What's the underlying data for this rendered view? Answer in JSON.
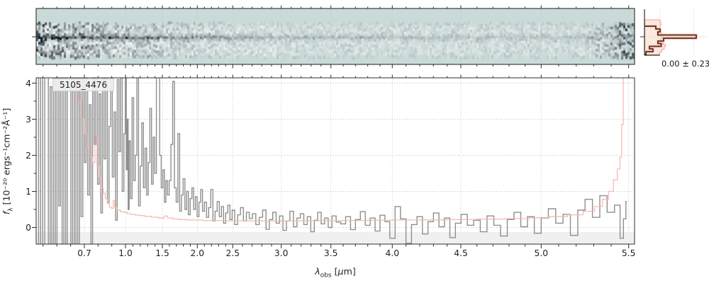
{
  "figure": {
    "source_id": "5105_4476",
    "background": "#ffffff"
  },
  "chart_data": {
    "type": "line",
    "title": "5105_4476",
    "xlabel": "λ_obs [μm]",
    "ylabel": "f_λ [10⁻²⁰ ergs⁻¹cm⁻²Å⁻¹]",
    "xlabel_parts": {
      "sym": "λ",
      "sub": "obs",
      "open": " [",
      "mu": "μ",
      "close": "m]"
    },
    "ylabel_parts": {
      "f": "f",
      "sub": "λ",
      "rest": " [10⁻²⁰ ergs⁻¹cm⁻²Å⁻¹]"
    },
    "x_axis": {
      "scale": "custom-warped",
      "ticks": [
        0.7,
        1.0,
        1.5,
        2.0,
        2.5,
        3.0,
        3.5,
        4.0,
        4.5,
        5.0,
        5.5
      ],
      "tick_labels": [
        "0.7",
        "1.0",
        "1.5",
        "2.0",
        "2.5",
        "3.0",
        "3.5",
        "4.0",
        "4.5",
        "5.0",
        "5.5"
      ],
      "minor_step": 0.1,
      "minor_range": [
        0.4,
        5.4
      ]
    },
    "y_axis": {
      "ticks": [
        0,
        1,
        2,
        3,
        4
      ],
      "tick_labels": [
        "0",
        "1",
        "2",
        "3",
        "4"
      ],
      "ylim": [
        -0.46,
        4.15
      ]
    },
    "grid": "dotted",
    "legend": "none",
    "colors": {
      "flux_line": "#8f8f8f",
      "error_line": "#f5b4ae",
      "grid_line": "#bcbcbc",
      "spine": "#2e2e2e",
      "below_zero_band": "#f0f0f0",
      "panel2d_background": "#cadad9",
      "panel2d_ink": "#101b26",
      "profile_line": "#5a2d21",
      "profile_halo": "#f6cdbc",
      "profile_fill": "#f8d8c8",
      "profile_fill_edge": "#efa28c"
    },
    "series": [
      {
        "name": "flux",
        "style": "steps-mid",
        "data": [
          [
            0.36,
            5.2
          ],
          [
            0.375,
            -1.4
          ],
          [
            0.39,
            4.8
          ],
          [
            0.405,
            -0.9
          ],
          [
            0.42,
            5.5
          ],
          [
            0.432,
            4.6
          ],
          [
            0.445,
            -1.2
          ],
          [
            0.458,
            3.9
          ],
          [
            0.47,
            -0.7
          ],
          [
            0.483,
            5.0
          ],
          [
            0.495,
            -1.5
          ],
          [
            0.508,
            4.4
          ],
          [
            0.52,
            0.6
          ],
          [
            0.532,
            5.3
          ],
          [
            0.545,
            -1.1
          ],
          [
            0.558,
            4.7
          ],
          [
            0.57,
            -0.5
          ],
          [
            0.582,
            5.6
          ],
          [
            0.595,
            4.9
          ],
          [
            0.608,
            -1.3
          ],
          [
            0.62,
            4.2
          ],
          [
            0.633,
            -0.8
          ],
          [
            0.645,
            5.1
          ],
          [
            0.658,
            -1.6
          ],
          [
            0.67,
            4.5
          ],
          [
            0.682,
            0.3
          ],
          [
            0.694,
            5.4
          ],
          [
            0.706,
            1.8
          ],
          [
            0.718,
            4.6
          ],
          [
            0.73,
            0.9
          ],
          [
            0.742,
            3.4
          ],
          [
            0.754,
            -0.6
          ],
          [
            0.766,
            4.9
          ],
          [
            0.778,
            2.3
          ],
          [
            0.79,
            5.2
          ],
          [
            0.802,
            1.2
          ],
          [
            0.814,
            3.7
          ],
          [
            0.826,
            0.4
          ],
          [
            0.838,
            4.3
          ],
          [
            0.85,
            1.9
          ],
          [
            0.862,
            5.0
          ],
          [
            0.874,
            0.7
          ],
          [
            0.886,
            2.8
          ],
          [
            0.898,
            4.5
          ],
          [
            0.91,
            1.4
          ],
          [
            0.922,
            3.2
          ],
          [
            0.934,
            0.2
          ],
          [
            0.946,
            4.1
          ],
          [
            0.958,
            2.1
          ],
          [
            0.97,
            5.3
          ],
          [
            0.982,
            1.0
          ],
          [
            0.994,
            2.6
          ],
          [
            1.006,
            4.4
          ],
          [
            1.018,
            1.6
          ],
          [
            1.03,
            3.0
          ],
          [
            1.042,
            0.5
          ],
          [
            1.056,
            2.4
          ],
          [
            1.078,
            0.8
          ],
          [
            1.1,
            3.6
          ],
          [
            1.122,
            1.3
          ],
          [
            1.144,
            2.0
          ],
          [
            1.166,
            4.2
          ],
          [
            1.188,
            0.6
          ],
          [
            1.21,
            1.7
          ],
          [
            1.232,
            2.9
          ],
          [
            1.254,
            1.1
          ],
          [
            1.276,
            2.2
          ],
          [
            1.298,
            0.9
          ],
          [
            1.32,
            1.8
          ],
          [
            1.342,
            3.3
          ],
          [
            1.364,
            1.2
          ],
          [
            1.386,
            2.5
          ],
          [
            1.408,
            1.5
          ],
          [
            1.43,
            4.7
          ],
          [
            1.452,
            5.8
          ],
          [
            1.474,
            2.0
          ],
          [
            1.496,
            1.1
          ],
          [
            1.518,
            1.6
          ],
          [
            1.54,
            0.7
          ],
          [
            1.562,
            1.3
          ],
          [
            1.584,
            0.9
          ],
          [
            1.61,
            1.3
          ],
          [
            1.635,
            2.3
          ],
          [
            1.66,
            4.05
          ],
          [
            1.685,
            1.1
          ],
          [
            1.71,
            0.7
          ],
          [
            1.735,
            2.6
          ],
          [
            1.76,
            0.45
          ],
          [
            1.785,
            0.9
          ],
          [
            1.81,
            1.35
          ],
          [
            1.835,
            0.5
          ],
          [
            1.86,
            1.0
          ],
          [
            1.885,
            0.35
          ],
          [
            1.91,
            0.8
          ],
          [
            1.935,
            1.1
          ],
          [
            1.96,
            0.5
          ],
          [
            1.985,
            0.85
          ],
          [
            2.01,
            0.3
          ],
          [
            2.035,
            0.7
          ],
          [
            2.06,
            1.05
          ],
          [
            2.085,
            0.45
          ],
          [
            2.115,
            0.7
          ],
          [
            2.145,
            0.28
          ],
          [
            2.175,
            0.55
          ],
          [
            2.205,
            1.05
          ],
          [
            2.235,
            0.18
          ],
          [
            2.265,
            0.45
          ],
          [
            2.295,
            0.72
          ],
          [
            2.325,
            0.3
          ],
          [
            2.355,
            0.58
          ],
          [
            2.385,
            0.12
          ],
          [
            2.415,
            0.4
          ],
          [
            2.445,
            0.62
          ],
          [
            2.475,
            0.22
          ],
          [
            2.505,
            0.48
          ],
          [
            2.535,
            0.08
          ],
          [
            2.565,
            0.35
          ],
          [
            2.595,
            0.55
          ],
          [
            2.625,
            0.18
          ],
          [
            2.655,
            0.42
          ],
          [
            2.685,
            0.25
          ],
          [
            2.72,
            0.38
          ],
          [
            2.755,
            0.08
          ],
          [
            2.79,
            0.28
          ],
          [
            2.825,
            0.48
          ],
          [
            2.86,
            -0.05
          ],
          [
            2.895,
            0.22
          ],
          [
            2.93,
            0.42
          ],
          [
            2.965,
            0.12
          ],
          [
            3.0,
            0.32
          ],
          [
            3.035,
            -0.08
          ],
          [
            3.07,
            0.18
          ],
          [
            3.105,
            0.45
          ],
          [
            3.14,
            0.02
          ],
          [
            3.175,
            0.26
          ],
          [
            3.21,
            0.38
          ],
          [
            3.245,
            0.08
          ],
          [
            3.28,
            0.3
          ],
          [
            3.315,
            -0.12
          ],
          [
            3.35,
            0.2
          ],
          [
            3.385,
            0.42
          ],
          [
            3.42,
            0.1
          ],
          [
            3.455,
            0.26
          ],
          [
            3.49,
            0.0
          ],
          [
            3.525,
            0.32
          ],
          [
            3.56,
            0.15
          ],
          [
            3.6,
            0.1
          ],
          [
            3.64,
            0.3
          ],
          [
            3.68,
            -0.06
          ],
          [
            3.72,
            0.22
          ],
          [
            3.76,
            0.44
          ],
          [
            3.8,
            0.06
          ],
          [
            3.84,
            0.26
          ],
          [
            3.88,
            -0.1
          ],
          [
            3.92,
            0.34
          ],
          [
            3.96,
            0.16
          ],
          [
            4.0,
            -0.3
          ],
          [
            4.04,
            0.58
          ],
          [
            4.08,
            0.24
          ],
          [
            4.12,
            -0.44
          ],
          [
            4.16,
            0.08
          ],
          [
            4.2,
            0.3
          ],
          [
            4.24,
            -0.18
          ],
          [
            4.28,
            0.16
          ],
          [
            4.32,
            0.4
          ],
          [
            4.36,
            0.02
          ],
          [
            4.4,
            0.26
          ],
          [
            4.44,
            -0.28
          ],
          [
            4.48,
            0.12
          ],
          [
            4.52,
            0.36
          ],
          [
            4.56,
            0.06
          ],
          [
            4.6,
            0.2
          ],
          [
            4.642,
            -0.12
          ],
          [
            4.684,
            0.32
          ],
          [
            4.726,
            0.06
          ],
          [
            4.768,
            -0.24
          ],
          [
            4.81,
            0.22
          ],
          [
            4.852,
            0.42
          ],
          [
            4.894,
            0.02
          ],
          [
            4.936,
            0.3
          ],
          [
            4.978,
            -0.16
          ],
          [
            5.02,
            0.26
          ],
          [
            5.062,
            0.52
          ],
          [
            5.104,
            0.12
          ],
          [
            5.146,
            0.36
          ],
          [
            5.188,
            -0.22
          ],
          [
            5.23,
            0.48
          ],
          [
            5.272,
            0.78
          ],
          [
            5.314,
            0.28
          ],
          [
            5.356,
            0.88
          ],
          [
            5.398,
            0.42
          ],
          [
            5.44,
            0.62
          ],
          [
            5.462,
            -0.3
          ],
          [
            5.478,
            0.24
          ],
          [
            5.49,
            0.72
          ]
        ]
      },
      {
        "name": "error",
        "style": "steps-mid",
        "data": [
          [
            0.36,
            5.0
          ],
          [
            0.5,
            4.8
          ],
          [
            0.6,
            4.5
          ],
          [
            0.645,
            4.1
          ],
          [
            0.67,
            3.5
          ],
          [
            0.69,
            3.0
          ],
          [
            0.71,
            2.6
          ],
          [
            0.73,
            2.25
          ],
          [
            0.75,
            1.95
          ],
          [
            0.77,
            1.8
          ],
          [
            0.785,
            2.55
          ],
          [
            0.8,
            1.7
          ],
          [
            0.815,
            1.4
          ],
          [
            0.83,
            1.08
          ],
          [
            0.845,
            0.95
          ],
          [
            0.86,
            0.8
          ],
          [
            0.875,
            0.66
          ],
          [
            0.89,
            0.56
          ],
          [
            0.905,
            0.53
          ],
          [
            0.915,
            0.74
          ],
          [
            0.93,
            0.55
          ],
          [
            0.95,
            0.48
          ],
          [
            0.975,
            0.44
          ],
          [
            1.0,
            0.42
          ],
          [
            1.05,
            0.385
          ],
          [
            1.1,
            0.36
          ],
          [
            1.16,
            0.345
          ],
          [
            1.22,
            0.33
          ],
          [
            1.3,
            0.31
          ],
          [
            1.4,
            0.285
          ],
          [
            1.5,
            0.26
          ],
          [
            1.55,
            0.315
          ],
          [
            1.6,
            0.26
          ],
          [
            1.7,
            0.235
          ],
          [
            1.8,
            0.22
          ],
          [
            1.9,
            0.21
          ],
          [
            2.0,
            0.205
          ],
          [
            2.15,
            0.195
          ],
          [
            2.3,
            0.19
          ],
          [
            2.5,
            0.185
          ],
          [
            2.7,
            0.182
          ],
          [
            2.9,
            0.18
          ],
          [
            3.1,
            0.182
          ],
          [
            3.3,
            0.185
          ],
          [
            3.5,
            0.19
          ],
          [
            3.7,
            0.195
          ],
          [
            3.9,
            0.2
          ],
          [
            4.1,
            0.205
          ],
          [
            4.3,
            0.21
          ],
          [
            4.5,
            0.22
          ],
          [
            4.7,
            0.232
          ],
          [
            4.85,
            0.245
          ],
          [
            5.0,
            0.27
          ],
          [
            5.1,
            0.3
          ],
          [
            5.2,
            0.35
          ],
          [
            5.28,
            0.45
          ],
          [
            5.33,
            0.58
          ],
          [
            5.37,
            0.78
          ],
          [
            5.4,
            1.0
          ],
          [
            5.425,
            1.32
          ],
          [
            5.445,
            1.62
          ],
          [
            5.455,
            1.95
          ],
          [
            5.465,
            2.85
          ],
          [
            5.473,
            4.6
          ],
          [
            5.53,
            4.9
          ]
        ]
      }
    ],
    "panel_2d": {
      "description": "2D grism spectrum cutout, teal colormap, dark trace along center, strong residual noise at blue end and red edge",
      "noise_seed": 20230705,
      "trace_center_y": 52
    },
    "profile": {
      "stats_label": "0.00 ± 0.23",
      "mean": 0.0,
      "sigma": 0.23,
      "axis_values": [
        0.0,
        0.23
      ],
      "line_steps": [
        [
          37.0,
          -0.029
        ],
        [
          41.0,
          0.0
        ],
        [
          45.0,
          -0.015
        ],
        [
          49.5,
          0.248
        ],
        [
          54.0,
          0.024
        ],
        [
          58.0,
          -0.015
        ],
        [
          61.5,
          0.008
        ],
        [
          65.5,
          -0.073
        ],
        [
          69.0,
          -0.049
        ],
        [
          73.0,
          -0.097
        ]
      ],
      "line_end_y": 77.3,
      "line_base_value": -0.107,
      "band_steps": [
        [
          28.0,
          0.0
        ],
        [
          31.8,
          0.006
        ],
        [
          35.6,
          0.0
        ],
        [
          39.4,
          -0.004
        ],
        [
          43.2,
          0.002
        ],
        [
          47.0,
          0.012
        ],
        [
          50.8,
          0.014
        ],
        [
          54.6,
          0.006
        ],
        [
          58.4,
          0.022
        ],
        [
          62.2,
          0.036
        ],
        [
          66.0,
          0.028
        ],
        [
          69.8,
          0.012
        ],
        [
          73.6,
          0.0
        ],
        [
          75.5,
          -0.01
        ]
      ],
      "band_end_y": 77.5
    }
  }
}
